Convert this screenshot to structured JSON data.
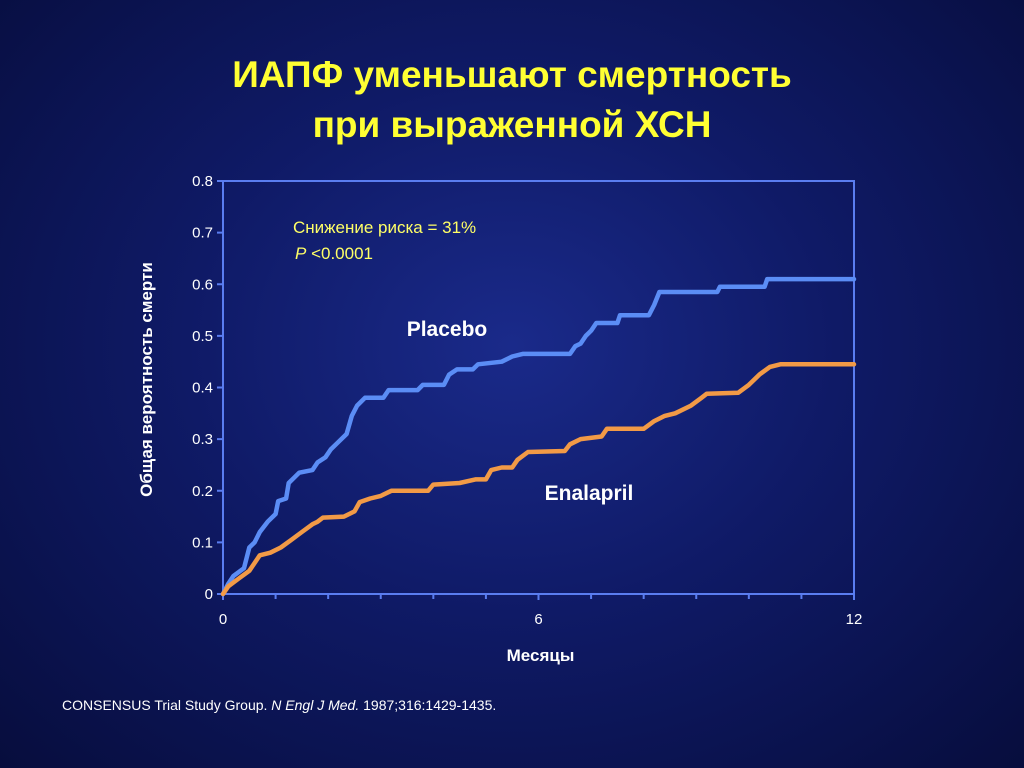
{
  "title": {
    "line1": "ИАПФ уменьшают смертность",
    "line2": "при выраженной ХСН"
  },
  "annotation": {
    "risk_reduction": "Снижение риска =  31%",
    "p_symbol": "P",
    "p_value": " <0.0001"
  },
  "citation": {
    "authors": "CONSENSUS Trial Study Group. ",
    "journal": "N Engl J Med.",
    "details": " 1987;316:1429-1435."
  },
  "colors": {
    "title": "#ffff33",
    "annotation": "#ffff66",
    "axis": "#5a7df0",
    "placebo": "#5b8df5",
    "enalapril": "#f29a46",
    "text": "#ffffff"
  },
  "chart_data": {
    "type": "line",
    "xlabel": "Месяцы",
    "ylabel": "Общая вероятность смерти",
    "xlim": [
      0,
      12
    ],
    "ylim": [
      0,
      0.8
    ],
    "xticks": [
      0,
      6,
      12
    ],
    "x_minor_ticks": [
      1,
      2,
      3,
      4,
      5,
      7,
      8,
      9,
      10,
      11
    ],
    "yticks": [
      0,
      0.1,
      0.2,
      0.3,
      0.4,
      0.5,
      0.6,
      0.7,
      0.8
    ],
    "grid": false,
    "series": [
      {
        "name": "Placebo",
        "color": "#5b8df5",
        "points": [
          [
            0,
            0
          ],
          [
            0.1,
            0.02
          ],
          [
            0.2,
            0.035
          ],
          [
            0.4,
            0.05
          ],
          [
            0.5,
            0.09
          ],
          [
            0.6,
            0.1
          ],
          [
            0.7,
            0.12
          ],
          [
            0.85,
            0.14
          ],
          [
            1.0,
            0.155
          ],
          [
            1.05,
            0.18
          ],
          [
            1.2,
            0.185
          ],
          [
            1.25,
            0.215
          ],
          [
            1.35,
            0.225
          ],
          [
            1.45,
            0.235
          ],
          [
            1.7,
            0.24
          ],
          [
            1.8,
            0.255
          ],
          [
            1.95,
            0.265
          ],
          [
            2.05,
            0.28
          ],
          [
            2.2,
            0.295
          ],
          [
            2.35,
            0.31
          ],
          [
            2.45,
            0.345
          ],
          [
            2.55,
            0.365
          ],
          [
            2.7,
            0.38
          ],
          [
            3.05,
            0.38
          ],
          [
            3.15,
            0.395
          ],
          [
            3.7,
            0.395
          ],
          [
            3.8,
            0.405
          ],
          [
            4.2,
            0.405
          ],
          [
            4.3,
            0.425
          ],
          [
            4.45,
            0.435
          ],
          [
            4.75,
            0.435
          ],
          [
            4.85,
            0.445
          ],
          [
            5.3,
            0.45
          ],
          [
            5.5,
            0.46
          ],
          [
            5.7,
            0.465
          ],
          [
            6.6,
            0.465
          ],
          [
            6.7,
            0.48
          ],
          [
            6.8,
            0.485
          ],
          [
            6.9,
            0.5
          ],
          [
            7.0,
            0.51
          ],
          [
            7.1,
            0.525
          ],
          [
            7.5,
            0.525
          ],
          [
            7.55,
            0.54
          ],
          [
            8.1,
            0.54
          ],
          [
            8.2,
            0.56
          ],
          [
            8.3,
            0.585
          ],
          [
            9.4,
            0.585
          ],
          [
            9.45,
            0.595
          ],
          [
            10.3,
            0.595
          ],
          [
            10.35,
            0.61
          ],
          [
            12,
            0.61
          ]
        ]
      },
      {
        "name": "Enalapril",
        "color": "#f29a46",
        "points": [
          [
            0,
            0
          ],
          [
            0.1,
            0.015
          ],
          [
            0.3,
            0.03
          ],
          [
            0.5,
            0.045
          ],
          [
            0.6,
            0.06
          ],
          [
            0.7,
            0.075
          ],
          [
            0.9,
            0.08
          ],
          [
            1.1,
            0.09
          ],
          [
            1.3,
            0.105
          ],
          [
            1.5,
            0.12
          ],
          [
            1.7,
            0.135
          ],
          [
            1.8,
            0.14
          ],
          [
            1.9,
            0.148
          ],
          [
            2.3,
            0.15
          ],
          [
            2.5,
            0.16
          ],
          [
            2.6,
            0.178
          ],
          [
            2.8,
            0.185
          ],
          [
            3.0,
            0.19
          ],
          [
            3.2,
            0.2
          ],
          [
            3.9,
            0.2
          ],
          [
            4.0,
            0.212
          ],
          [
            4.5,
            0.215
          ],
          [
            4.8,
            0.222
          ],
          [
            5.0,
            0.222
          ],
          [
            5.1,
            0.24
          ],
          [
            5.3,
            0.245
          ],
          [
            5.5,
            0.245
          ],
          [
            5.6,
            0.26
          ],
          [
            5.8,
            0.275
          ],
          [
            6.5,
            0.277
          ],
          [
            6.6,
            0.29
          ],
          [
            6.8,
            0.3
          ],
          [
            7.2,
            0.305
          ],
          [
            7.3,
            0.32
          ],
          [
            8.0,
            0.32
          ],
          [
            8.2,
            0.335
          ],
          [
            8.4,
            0.345
          ],
          [
            8.6,
            0.35
          ],
          [
            8.9,
            0.365
          ],
          [
            9.1,
            0.38
          ],
          [
            9.2,
            0.388
          ],
          [
            9.8,
            0.39
          ],
          [
            10.0,
            0.405
          ],
          [
            10.2,
            0.425
          ],
          [
            10.4,
            0.44
          ],
          [
            10.6,
            0.445
          ],
          [
            12,
            0.445
          ]
        ]
      }
    ]
  }
}
